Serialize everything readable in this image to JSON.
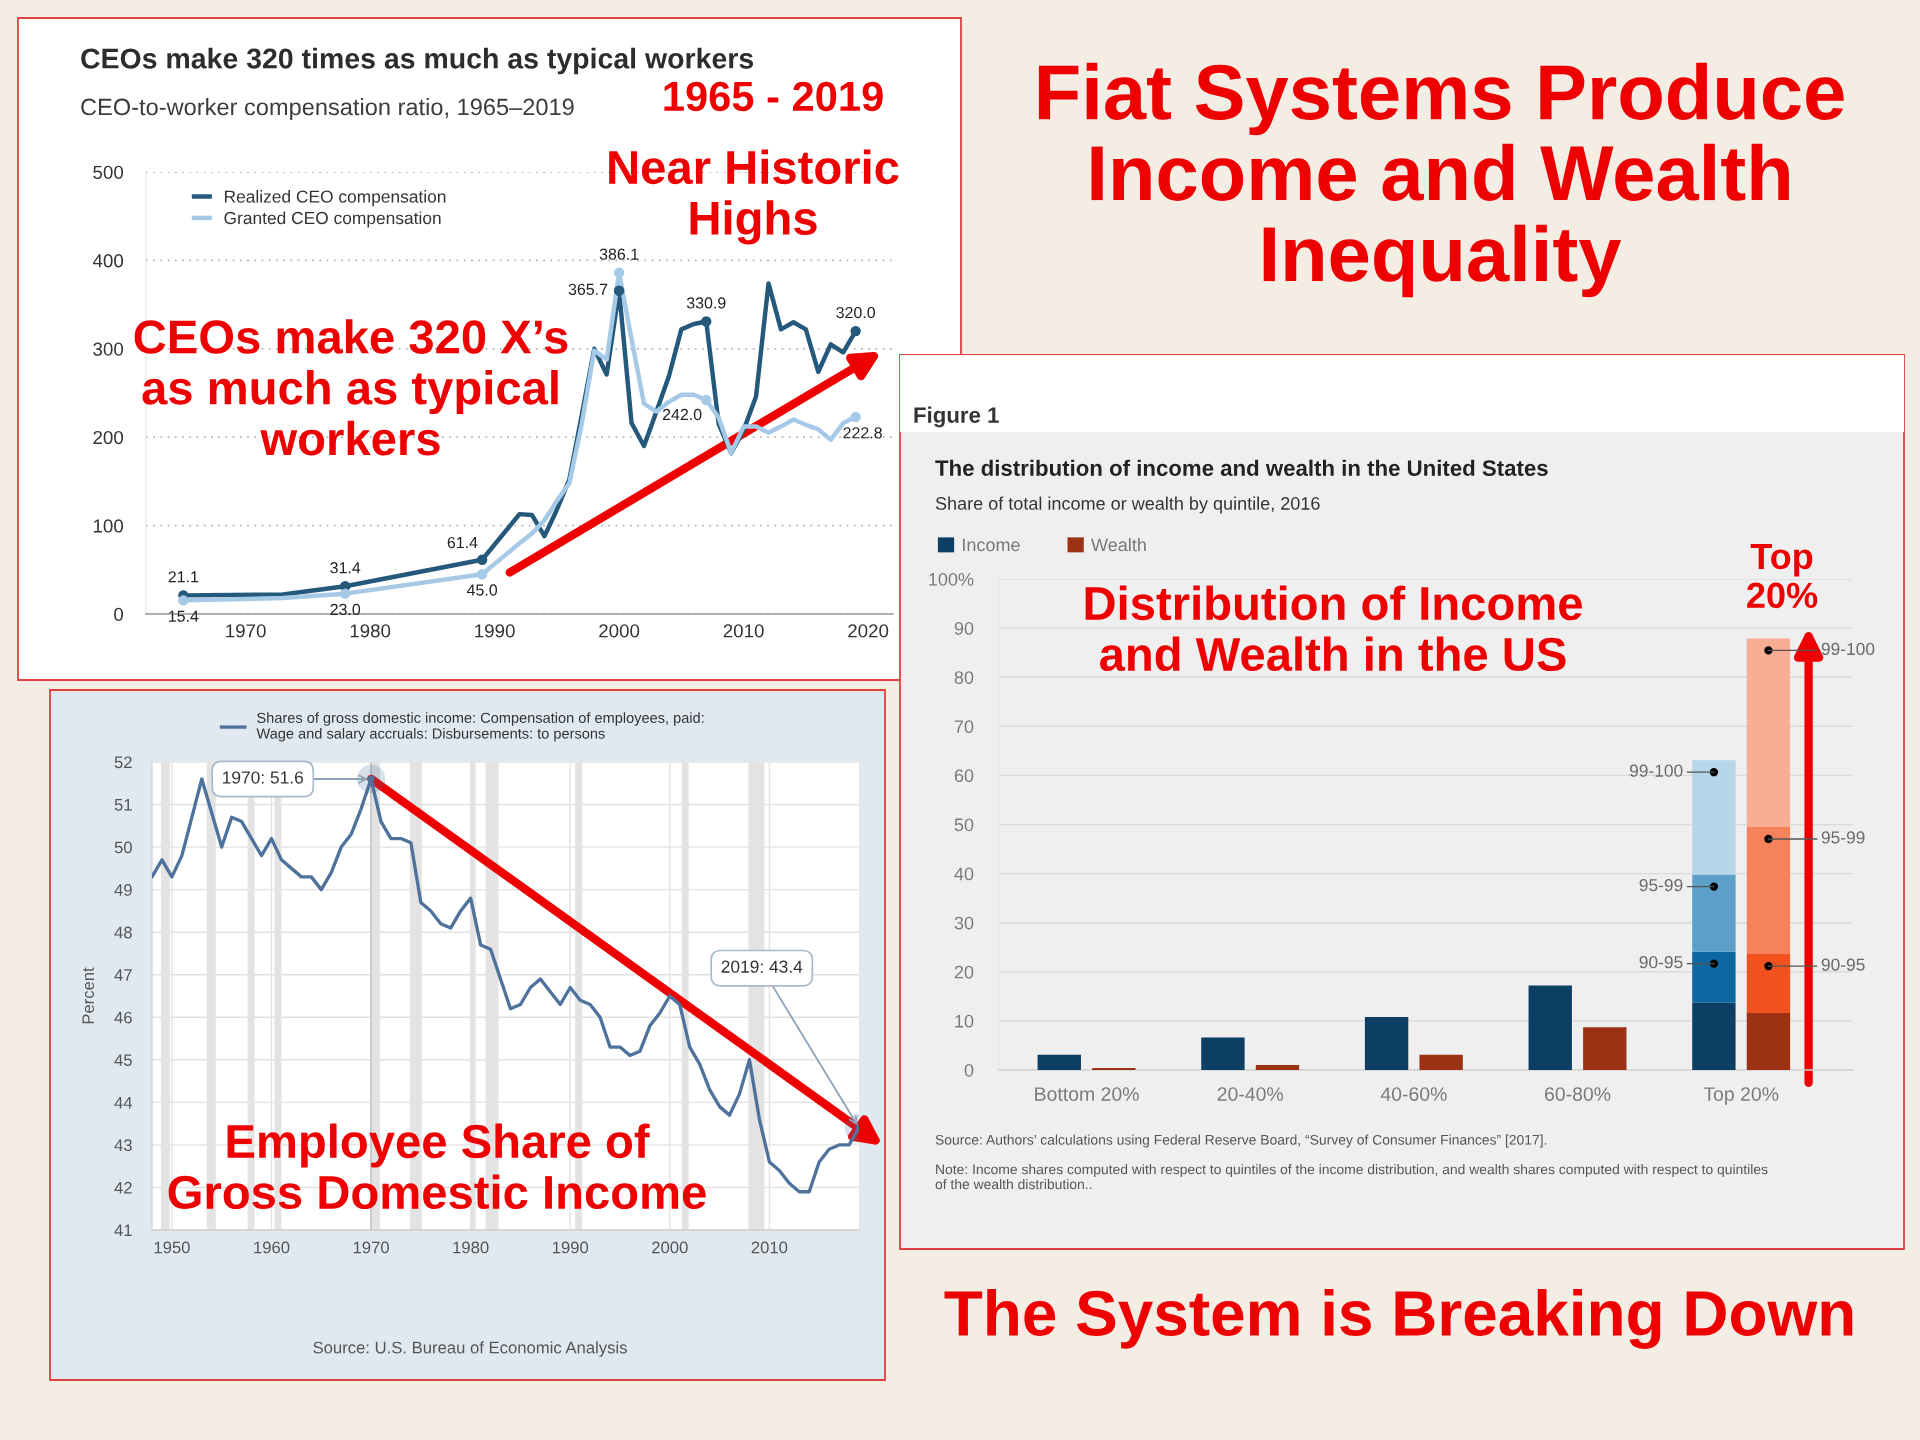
{
  "chart_data": [
    {
      "type": "line",
      "title": "CEOs make 320 times as much as typical workers",
      "subtitle": "CEO-to-worker compensation ratio, 1965–2019",
      "x": [
        1965,
        1973,
        1978,
        1989,
        1992,
        1993,
        1994,
        1995,
        1996,
        1997,
        1998,
        1999,
        2000,
        2001,
        2002,
        2003,
        2004,
        2005,
        2006,
        2007,
        2008,
        2009,
        2010,
        2011,
        2012,
        2013,
        2014,
        2015,
        2016,
        2017,
        2018,
        2019
      ],
      "series": [
        {
          "name": "Realized CEO compensation",
          "color": "#24597c",
          "values": [
            21.1,
            22,
            31.4,
            61.4,
            113,
            112,
            88,
            118,
            152,
            225,
            300,
            271,
            365.7,
            216,
            190,
            229,
            269,
            322,
            328,
            330.9,
            215,
            182,
            208,
            246,
            374,
            322,
            330,
            322,
            274,
            305,
            296,
            320.0
          ],
          "value_labels": [
            "21.1",
            null,
            "31.4",
            "61.4",
            null,
            null,
            null,
            null,
            null,
            null,
            null,
            null,
            "365.7",
            null,
            null,
            null,
            null,
            null,
            null,
            "330.9",
            null,
            null,
            null,
            null,
            null,
            null,
            null,
            null,
            null,
            null,
            null,
            "320.0"
          ]
        },
        {
          "name": "Granted CEO compensation",
          "color": "#a5c9e6",
          "values": [
            15.4,
            18,
            23.0,
            45.0,
            80,
            91,
            106,
            128,
            148,
            215,
            298,
            288,
            386.1,
            311,
            238,
            229,
            240,
            248,
            248,
            242.0,
            222,
            182,
            212,
            212,
            205,
            212,
            220,
            214,
            209,
            197,
            216,
            222.8
          ],
          "value_labels": [
            "15.4",
            null,
            "23.0",
            "45.0",
            null,
            null,
            null,
            null,
            null,
            null,
            null,
            null,
            "386.1",
            null,
            null,
            null,
            null,
            null,
            null,
            "242.0",
            null,
            null,
            null,
            null,
            null,
            null,
            null,
            null,
            null,
            null,
            null,
            "222.8"
          ]
        }
      ],
      "xlim": [
        1962,
        2022
      ],
      "ylim": [
        0,
        500
      ],
      "xticks": [
        1970,
        1980,
        1990,
        2000,
        2010,
        2020
      ],
      "yticks": [
        0,
        100,
        200,
        300,
        400,
        500
      ],
      "grid": "y",
      "legend": "top left",
      "annotations": [
        "1965 - 2019",
        "Near Historic\nHighs",
        "CEOs make 320 X’s\nas much as typical\nworkers"
      ]
    },
    {
      "type": "line",
      "ylabel": "Percent",
      "x": [
        1948,
        1949,
        1950,
        1951,
        1952,
        1953,
        1954,
        1955,
        1956,
        1957,
        1958,
        1959,
        1960,
        1961,
        1962,
        1963,
        1964,
        1965,
        1966,
        1967,
        1968,
        1969,
        1970,
        1971,
        1972,
        1973,
        1974,
        1975,
        1976,
        1977,
        1978,
        1979,
        1980,
        1981,
        1982,
        1983,
        1984,
        1985,
        1986,
        1987,
        1988,
        1989,
        1990,
        1991,
        1992,
        1993,
        1994,
        1995,
        1996,
        1997,
        1998,
        1999,
        2000,
        2001,
        2002,
        2003,
        2004,
        2005,
        2006,
        2007,
        2008,
        2009,
        2010,
        2011,
        2012,
        2013,
        2014,
        2015,
        2016,
        2017,
        2018,
        2019
      ],
      "series": [
        {
          "name": "Shares of gross domestic income: Compensation of employees, paid:\nWage and salary accruals: Disbursements: to persons",
          "color": "#4f729c",
          "values": [
            49.3,
            49.7,
            49.3,
            49.8,
            50.7,
            51.6,
            50.8,
            50.0,
            50.7,
            50.6,
            50.2,
            49.8,
            50.2,
            49.7,
            49.5,
            49.3,
            49.3,
            49.0,
            49.4,
            50.0,
            50.3,
            50.9,
            51.6,
            50.6,
            50.2,
            50.2,
            50.1,
            48.7,
            48.5,
            48.2,
            48.1,
            48.5,
            48.8,
            47.7,
            47.6,
            46.9,
            46.2,
            46.3,
            46.7,
            46.9,
            46.6,
            46.3,
            46.7,
            46.4,
            46.3,
            46.0,
            45.3,
            45.3,
            45.1,
            45.2,
            45.8,
            46.1,
            46.5,
            46.3,
            45.3,
            44.9,
            44.3,
            43.9,
            43.7,
            44.2,
            45.0,
            43.6,
            42.6,
            42.4,
            42.1,
            41.9,
            41.9,
            42.6,
            42.9,
            43.0,
            43.0,
            43.4
          ]
        }
      ],
      "xlim": [
        1948,
        2019
      ],
      "ylim": [
        41,
        52
      ],
      "xticks": [
        1950,
        1960,
        1970,
        1980,
        1990,
        2000,
        2010
      ],
      "yticks": [
        41,
        42,
        43,
        44,
        45,
        46,
        47,
        48,
        49,
        50,
        51,
        52
      ],
      "grid": true,
      "legend": "top",
      "bands": [
        {
          "axis": "x",
          "from": 1948.9,
          "to": 1949.8,
          "color": "#e3e3e3"
        },
        {
          "axis": "x",
          "from": 1953.5,
          "to": 1954.4,
          "color": "#e3e3e3"
        },
        {
          "axis": "x",
          "from": 1957.6,
          "to": 1958.3,
          "color": "#e3e3e3"
        },
        {
          "axis": "x",
          "from": 1960.3,
          "to": 1961.0,
          "color": "#e3e3e3"
        },
        {
          "axis": "x",
          "from": 1969.9,
          "to": 1970.9,
          "color": "#e3e3e3"
        },
        {
          "axis": "x",
          "from": 1973.9,
          "to": 1975.1,
          "color": "#e3e3e3"
        },
        {
          "axis": "x",
          "from": 1980.0,
          "to": 1980.5,
          "color": "#e3e3e3"
        },
        {
          "axis": "x",
          "from": 1981.5,
          "to": 1982.8,
          "color": "#e3e3e3"
        },
        {
          "axis": "x",
          "from": 1990.5,
          "to": 1991.2,
          "color": "#e3e3e3"
        },
        {
          "axis": "x",
          "from": 2001.2,
          "to": 2001.9,
          "color": "#e3e3e3"
        },
        {
          "axis": "x",
          "from": 2007.9,
          "to": 2009.5,
          "color": "#e3e3e3"
        }
      ],
      "ref_lines": [
        {
          "axis": "x",
          "value": 1970,
          "color": "#c4c4c4"
        }
      ],
      "annotations": [
        {
          "text": "1970: 51.6",
          "x": 1970,
          "y": 51.6
        },
        {
          "text": "2019: 43.4",
          "x": 2019,
          "y": 43.4
        },
        "Employee Share of\nGross Domestic Income",
        "Source: U.S. Bureau of Economic Analysis"
      ]
    },
    {
      "type": "bar",
      "title": "The distribution of income and wealth in the United States",
      "subtitle": "Share of total income or wealth by quintile, 2016",
      "categories": [
        null,
        "Bottom 20%",
        null,
        null,
        null,
        null,
        null,
        "20-40%",
        null,
        null,
        null,
        null,
        null,
        "40-60%",
        null,
        null,
        null,
        null,
        null,
        "60-80%",
        null,
        null,
        null,
        null,
        null,
        "Top 20%",
        null
      ],
      "stacked": true,
      "series": [
        {
          "name": "Income",
          "color": "#0c3f63",
          "values": [
            3.1,
            null,
            null,
            null,
            null,
            null,
            6.6,
            null,
            null,
            null,
            null,
            null,
            10.8,
            null,
            null,
            null,
            null,
            null,
            17.2,
            null,
            null,
            null,
            null,
            null,
            13.7,
            null,
            null
          ]
        },
        {
          "name": "Wealth",
          "color": "#9b3214",
          "values": [
            null,
            null,
            0.4,
            null,
            null,
            null,
            null,
            null,
            1.0,
            null,
            null,
            null,
            null,
            null,
            3.1,
            null,
            null,
            null,
            null,
            null,
            8.7,
            null,
            null,
            null,
            null,
            null,
            11.6
          ]
        },
        {
          "name": "90-95",
          "values": [
            null,
            null,
            null,
            null,
            null,
            null,
            null,
            null,
            null,
            null,
            null,
            null,
            null,
            null,
            null,
            null,
            null,
            null,
            null,
            null,
            null,
            null,
            null,
            null,
            10.4,
            null,
            12.0
          ],
          "colors": [
            null,
            null,
            null,
            null,
            null,
            null,
            null,
            null,
            null,
            null,
            null,
            null,
            null,
            null,
            null,
            null,
            null,
            null,
            null,
            null,
            null,
            null,
            null,
            null,
            "#0d67a3",
            null,
            "#f2521f"
          ]
        },
        {
          "name": "95-99",
          "values": [
            null,
            null,
            null,
            null,
            null,
            null,
            null,
            null,
            null,
            null,
            null,
            null,
            null,
            null,
            null,
            null,
            null,
            null,
            null,
            null,
            null,
            null,
            null,
            null,
            15.7,
            null,
            25.9
          ],
          "colors": [
            null,
            null,
            null,
            null,
            null,
            null,
            null,
            null,
            null,
            null,
            null,
            null,
            null,
            null,
            null,
            null,
            null,
            null,
            null,
            null,
            null,
            null,
            null,
            null,
            "#5c9fc9",
            null,
            "#f6825c"
          ]
        },
        {
          "name": "99-100",
          "values": [
            null,
            null,
            null,
            null,
            null,
            null,
            null,
            null,
            null,
            null,
            null,
            null,
            null,
            null,
            null,
            null,
            null,
            null,
            null,
            null,
            null,
            null,
            null,
            null,
            23.3,
            null,
            38.4
          ],
          "colors": [
            null,
            null,
            null,
            null,
            null,
            null,
            null,
            null,
            null,
            null,
            null,
            null,
            null,
            null,
            null,
            null,
            null,
            null,
            null,
            null,
            null,
            null,
            null,
            null,
            "#b6d6e9",
            null,
            "#f8ae94"
          ]
        }
      ],
      "ylim": [
        0,
        100
      ],
      "yticks": [
        0,
        10,
        20,
        30,
        40,
        50,
        60,
        70,
        80,
        90,
        {
          "value": 100,
          "label": "100%"
        }
      ],
      "grid": "y",
      "legend": "top left",
      "annotations": [
        "Figure 1",
        "Distribution of Income\nand Wealth in the US",
        "Top\n20%",
        "Source: Authors’ calculations using Federal Reserve Board, “Survey of Consumer Finances” [2017].",
        "Note: Income shares computed with respect to quintiles of the income distribution, and wealth shares computed with respect to quintiles\nof the wealth distribution.."
      ]
    },
    {
      "type": "other",
      "title": "Fiat Systems Produce Income and Wealth Inequality",
      "annotations": [
        "The System is Breaking Down"
      ]
    }
  ]
}
